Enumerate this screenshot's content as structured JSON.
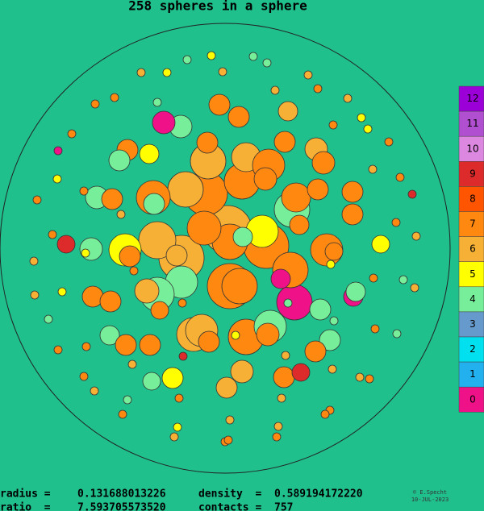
{
  "title": "258 spheres in a sphere",
  "legend": [
    {
      "label": "12",
      "color": "#9b00d9"
    },
    {
      "label": "11",
      "color": "#b050d0"
    },
    {
      "label": "10",
      "color": "#dd88e0"
    },
    {
      "label": "9",
      "color": "#dd2a2a"
    },
    {
      "label": "8",
      "color": "#ff5500"
    },
    {
      "label": "7",
      "color": "#ff8811"
    },
    {
      "label": "6",
      "color": "#f5b035"
    },
    {
      "label": "5",
      "color": "#ffff00"
    },
    {
      "label": "4",
      "color": "#77ee99"
    },
    {
      "label": "3",
      "color": "#6699cc"
    },
    {
      "label": "2",
      "color": "#00e0ee"
    },
    {
      "label": "1",
      "color": "#22b0ee"
    },
    {
      "label": "0",
      "color": "#ee1188"
    }
  ],
  "stats": [
    [
      {
        "label": "radius =",
        "value": "0.131688013226"
      },
      {
        "label": "density  =",
        "value": "0.589194172220"
      }
    ],
    [
      {
        "label": "ratio  =",
        "value": "7.593705573520"
      },
      {
        "label": "contacts =",
        "value": "757"
      }
    ]
  ],
  "credit": {
    "author": "© E.Specht",
    "date": "10-JUL-2023"
  }
}
